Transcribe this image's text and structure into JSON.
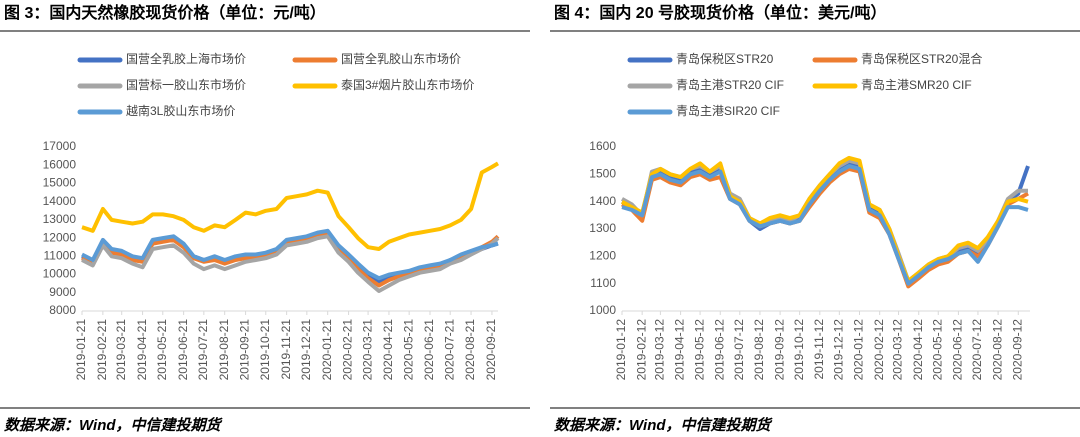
{
  "chart_data": [
    {
      "type": "line",
      "title": "图 3：国内天然橡胶现货价格（单位：元/吨）",
      "source": "数据来源：Wind，中信建投期货",
      "grid": false,
      "x": [
        "2019-01-21",
        "2019-02-06",
        "2019-02-21",
        "2019-03-06",
        "2019-03-21",
        "2019-04-06",
        "2019-04-21",
        "2019-05-06",
        "2019-05-21",
        "2019-06-06",
        "2019-06-21",
        "2019-07-06",
        "2019-07-21",
        "2019-08-06",
        "2019-08-21",
        "2019-09-06",
        "2019-09-21",
        "2019-10-06",
        "2019-10-21",
        "2019-11-06",
        "2019-11-21",
        "2019-12-06",
        "2019-12-21",
        "2020-01-06",
        "2020-01-21",
        "2020-02-06",
        "2020-02-21",
        "2020-03-06",
        "2020-03-21",
        "2020-04-06",
        "2020-04-21",
        "2020-05-06",
        "2020-05-21",
        "2020-06-06",
        "2020-06-21",
        "2020-07-06",
        "2020-07-21",
        "2020-08-06",
        "2020-08-21",
        "2020-09-06",
        "2020-09-21",
        "2020-09-30"
      ],
      "xlim": [
        "2019-01-21",
        "2020-09-30"
      ],
      "xticks": [
        "2019-01-21",
        "2019-02-21",
        "2019-03-21",
        "2019-04-21",
        "2019-05-21",
        "2019-06-21",
        "2019-07-21",
        "2019-08-21",
        "2019-09-21",
        "2019-10-21",
        "2019-11-21",
        "2019-12-21",
        "2020-01-21",
        "2020-02-21",
        "2020-03-21",
        "2020-04-21",
        "2020-05-21",
        "2020-06-21",
        "2020-07-21",
        "2020-08-21",
        "2020-09-21"
      ],
      "ylim": [
        8000,
        17000
      ],
      "yticks": [
        8000,
        9000,
        10000,
        11000,
        12000,
        13000,
        14000,
        15000,
        16000,
        17000
      ],
      "series": [
        {
          "name": "国营全乳胶上海市场价",
          "color": "#4472c4",
          "values": [
            11000,
            10700,
            11800,
            11300,
            11200,
            10900,
            10800,
            11800,
            11900,
            12000,
            11600,
            11000,
            10800,
            10900,
            10700,
            10900,
            11000,
            11000,
            11100,
            11300,
            11800,
            11900,
            12000,
            12200,
            12300,
            11500,
            11000,
            10500,
            10000,
            9600,
            9800,
            10000,
            10100,
            10300,
            10400,
            10500,
            10800,
            11000,
            11200,
            11400,
            11600,
            11700
          ]
        },
        {
          "name": "国营全乳胶山东市场价",
          "color": "#ed7d31",
          "values": [
            10900,
            10600,
            11700,
            11200,
            11100,
            10800,
            10700,
            11700,
            11800,
            11900,
            11500,
            10900,
            10700,
            10800,
            10600,
            10800,
            10900,
            10900,
            11000,
            11200,
            11700,
            11800,
            11900,
            12100,
            12200,
            11400,
            10900,
            10300,
            9800,
            9400,
            9700,
            9900,
            10000,
            10200,
            10300,
            10400,
            10700,
            10900,
            11200,
            11500,
            11800,
            12100
          ]
        },
        {
          "name": "国营标一胶山东市场价",
          "color": "#a5a5a5",
          "values": [
            10800,
            10500,
            11600,
            11000,
            10900,
            10600,
            10400,
            11400,
            11500,
            11600,
            11200,
            10600,
            10300,
            10500,
            10300,
            10500,
            10700,
            10800,
            10900,
            11100,
            11600,
            11700,
            11800,
            12000,
            12100,
            11200,
            10700,
            10100,
            9600,
            9100,
            9400,
            9700,
            9900,
            10100,
            10200,
            10300,
            10600,
            10800,
            11100,
            11400,
            11700,
            12000
          ]
        },
        {
          "name": "泰国3#烟片胶山东市场价",
          "color": "#ffc000",
          "values": [
            12600,
            12400,
            13600,
            13000,
            12900,
            12800,
            12900,
            13300,
            13300,
            13200,
            13000,
            12600,
            12400,
            12700,
            12600,
            13000,
            13400,
            13300,
            13500,
            13600,
            14200,
            14300,
            14400,
            14600,
            14500,
            13200,
            12600,
            12000,
            11500,
            11400,
            11800,
            12000,
            12200,
            12300,
            12400,
            12500,
            12700,
            13000,
            13600,
            15600,
            15900,
            16100
          ]
        },
        {
          "name": "越南3L胶山东市场价",
          "color": "#5b9bd5",
          "values": [
            11100,
            10800,
            11900,
            11400,
            11300,
            11000,
            10900,
            11900,
            12000,
            12100,
            11700,
            11000,
            10800,
            11000,
            10800,
            11000,
            11100,
            11100,
            11200,
            11400,
            11900,
            12000,
            12100,
            12300,
            12400,
            11600,
            11100,
            10600,
            10100,
            9800,
            10000,
            10100,
            10200,
            10400,
            10500,
            10600,
            10800,
            11100,
            11300,
            11500,
            11600,
            11700
          ]
        }
      ]
    },
    {
      "type": "line",
      "title": "图 4：国内 20 号胶现货价格（单位：美元/吨）",
      "source": "数据来源：Wind，中信建投期货",
      "grid": false,
      "x": [
        "2019-01-12",
        "2019-01-27",
        "2019-02-12",
        "2019-02-27",
        "2019-03-12",
        "2019-03-27",
        "2019-04-12",
        "2019-04-27",
        "2019-05-12",
        "2019-05-27",
        "2019-06-12",
        "2019-06-27",
        "2019-07-12",
        "2019-07-27",
        "2019-08-12",
        "2019-08-27",
        "2019-09-12",
        "2019-09-27",
        "2019-10-12",
        "2019-10-27",
        "2019-11-12",
        "2019-11-27",
        "2019-12-12",
        "2019-12-27",
        "2020-01-12",
        "2020-01-27",
        "2020-02-12",
        "2020-02-27",
        "2020-03-12",
        "2020-03-27",
        "2020-04-12",
        "2020-04-27",
        "2020-05-12",
        "2020-05-27",
        "2020-06-12",
        "2020-06-27",
        "2020-07-12",
        "2020-07-27",
        "2020-08-12",
        "2020-08-27",
        "2020-09-12",
        "2020-09-27"
      ],
      "xlim": [
        "2019-01-12",
        "2020-09-30"
      ],
      "xticks": [
        "2019-01-12",
        "2019-02-12",
        "2019-03-12",
        "2019-04-12",
        "2019-05-12",
        "2019-06-12",
        "2019-07-12",
        "2019-08-12",
        "2019-09-12",
        "2019-10-12",
        "2019-11-12",
        "2019-12-12",
        "2020-01-12",
        "2020-02-12",
        "2020-03-12",
        "2020-04-12",
        "2020-05-12",
        "2020-06-12",
        "2020-07-12",
        "2020-08-12",
        "2020-09-12"
      ],
      "ylim": [
        1000,
        1600
      ],
      "yticks": [
        1000,
        1100,
        1200,
        1300,
        1400,
        1500,
        1600
      ],
      "series": [
        {
          "name": "青岛保税区STR20",
          "color": "#4472c4",
          "values": [
            1400,
            1380,
            1340,
            1500,
            1510,
            1490,
            1480,
            1510,
            1520,
            1500,
            1520,
            1420,
            1400,
            1330,
            1300,
            1320,
            1330,
            1320,
            1340,
            1400,
            1450,
            1490,
            1520,
            1540,
            1530,
            1380,
            1360,
            1290,
            1200,
            1100,
            1130,
            1160,
            1180,
            1190,
            1220,
            1230,
            1210,
            1250,
            1320,
            1400,
            1430,
            1530
          ]
        },
        {
          "name": "青岛保税区STR20混合",
          "color": "#ed7d31",
          "values": [
            1390,
            1370,
            1330,
            1480,
            1490,
            1470,
            1460,
            1490,
            1500,
            1480,
            1490,
            1410,
            1390,
            1330,
            1310,
            1320,
            1330,
            1320,
            1330,
            1380,
            1430,
            1470,
            1500,
            1520,
            1510,
            1360,
            1340,
            1280,
            1190,
            1090,
            1120,
            1150,
            1170,
            1180,
            1210,
            1220,
            1200,
            1240,
            1310,
            1390,
            1410,
            1430
          ]
        },
        {
          "name": "青岛主港STR20 CIF",
          "color": "#a5a5a5",
          "values": [
            1410,
            1390,
            1350,
            1510,
            1520,
            1500,
            1490,
            1520,
            1530,
            1510,
            1530,
            1430,
            1410,
            1340,
            1320,
            1330,
            1340,
            1330,
            1350,
            1410,
            1460,
            1500,
            1530,
            1550,
            1540,
            1390,
            1370,
            1300,
            1210,
            1110,
            1140,
            1170,
            1190,
            1200,
            1230,
            1240,
            1220,
            1260,
            1330,
            1410,
            1440,
            1440
          ]
        },
        {
          "name": "青岛主港SMR20 CIF",
          "color": "#ffc000",
          "values": [
            1400,
            1380,
            1360,
            1500,
            1520,
            1500,
            1490,
            1520,
            1540,
            1510,
            1540,
            1420,
            1400,
            1340,
            1320,
            1340,
            1350,
            1340,
            1350,
            1410,
            1460,
            1500,
            1540,
            1560,
            1550,
            1390,
            1370,
            1300,
            1200,
            1110,
            1140,
            1170,
            1190,
            1200,
            1240,
            1250,
            1230,
            1270,
            1330,
            1400,
            1410,
            1400
          ]
        },
        {
          "name": "青岛主港SIR20 CIF",
          "color": "#5b9bd5",
          "values": [
            1380,
            1370,
            1350,
            1490,
            1500,
            1480,
            1470,
            1500,
            1510,
            1490,
            1510,
            1410,
            1390,
            1330,
            1310,
            1320,
            1330,
            1320,
            1330,
            1390,
            1440,
            1480,
            1510,
            1530,
            1520,
            1370,
            1350,
            1280,
            1190,
            1100,
            1130,
            1160,
            1180,
            1190,
            1210,
            1220,
            1180,
            1240,
            1310,
            1380,
            1380,
            1370
          ]
        }
      ]
    }
  ]
}
